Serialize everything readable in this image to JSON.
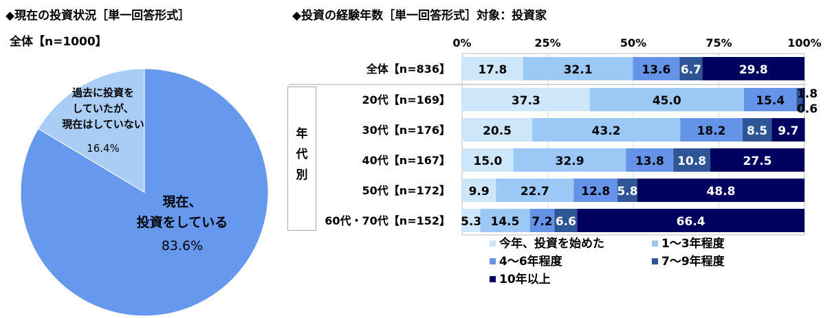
{
  "left": {
    "title": "◆現在の投資状況［単一回答形式］",
    "subtitle": "全体【n=1000】"
  },
  "right": {
    "title": "◆投資の経験年数［単一回答形式］対象：投資家",
    "group_label": "年代別"
  },
  "colors": [
    "#cde6fa",
    "#9cc8f5",
    "#6593e8",
    "#2e5595",
    "#00005e"
  ],
  "chart_data": [
    {
      "type": "pie",
      "slices": [
        {
          "label": "現在、投資をしている",
          "label_lines": [
            "現在、",
            "投資をしている"
          ],
          "value": 83.6,
          "value_label": "83.6%",
          "color": "#6699ee"
        },
        {
          "label": "過去に投資をしていたが、現在はしていない",
          "label_lines": [
            "過去に投資を",
            "していたが、",
            "現在はしていない"
          ],
          "value": 16.4,
          "value_label": "16.4%",
          "color": "#a9cdf5"
        }
      ]
    },
    {
      "type": "bar",
      "orientation": "horizontal",
      "stacked": true,
      "xlim": [
        0,
        100
      ],
      "ticks": [
        "0%",
        "25%",
        "50%",
        "75%",
        "100%"
      ],
      "categories": [
        "全体【n=836】",
        "20代【n=169】",
        "30代【n=176】",
        "40代【n=167】",
        "50代【n=172】",
        "60代・70代【n=152】"
      ],
      "series": [
        {
          "name": "今年、投資を始めた",
          "values": [
            17.8,
            37.3,
            20.5,
            15.0,
            9.9,
            5.3
          ]
        },
        {
          "name": "1～3年程度",
          "values": [
            32.1,
            45.0,
            43.2,
            32.9,
            22.7,
            14.5
          ]
        },
        {
          "name": "4～6年程度",
          "values": [
            13.6,
            15.4,
            18.2,
            13.8,
            12.8,
            7.2
          ]
        },
        {
          "name": "7～9年程度",
          "values": [
            6.7,
            1.8,
            8.5,
            10.8,
            5.8,
            6.6
          ]
        },
        {
          "name": "10年以上",
          "values": [
            29.8,
            0.6,
            9.7,
            27.5,
            48.8,
            66.4
          ]
        }
      ],
      "legend": "bottom"
    }
  ]
}
